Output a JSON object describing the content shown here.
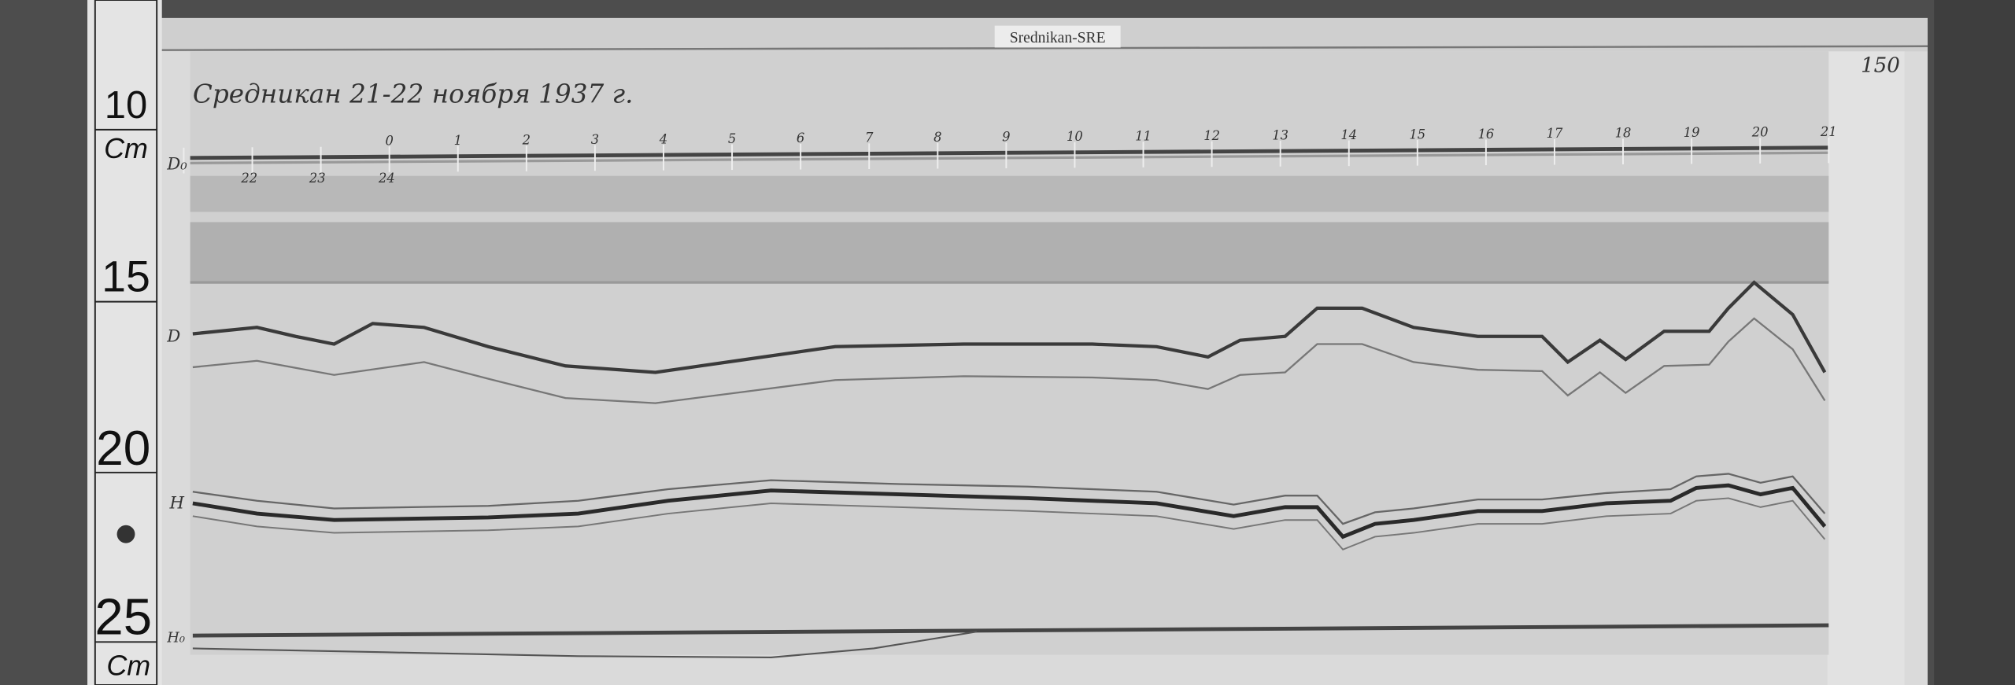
{
  "label_tape": {
    "text": "Srednikan-SRE"
  },
  "sheet_number": "150",
  "title_handwritten": "Средникан 21-22 ноября 1937 г.",
  "ruler": {
    "marks": [
      "10",
      "15",
      "20",
      "25"
    ],
    "unit_top": "Cm",
    "unit_bottom": "Cm"
  },
  "trace_labels": {
    "baseline_top": "D₀",
    "declination": "D",
    "horizontal": "H",
    "baseline_bottom": "H₀"
  },
  "hour_labels_top": [
    "0",
    "1",
    "2",
    "3",
    "4",
    "5",
    "6",
    "7",
    "8",
    "9",
    "10",
    "11",
    "12",
    "13",
    "14",
    "15",
    "16",
    "17",
    "18",
    "19",
    "20",
    "21"
  ],
  "hour_labels_bottom": [
    "22",
    "23",
    "24"
  ],
  "colors": {
    "background": "#4a4a4a",
    "paper": "#d8d8d8",
    "trace": "#3a3a3a"
  }
}
